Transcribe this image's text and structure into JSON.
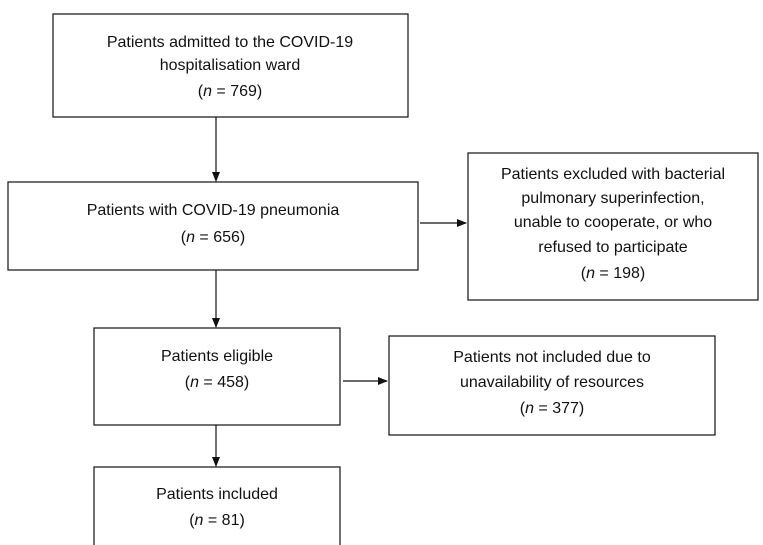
{
  "nodes": [
    {
      "lines": [
        "Patients admitted to the COVID-19",
        "hospitalisation ward"
      ],
      "count": [
        "(",
        "n",
        " =  769)"
      ]
    },
    {
      "lines": [
        "Patients with COVID-19 pneumonia"
      ],
      "count": [
        "(",
        "n",
        " =  656)"
      ]
    },
    {
      "lines": [
        "Patients excluded with bacterial",
        "pulmonary superinfection,",
        "unable to cooperate, or who",
        "refused to participate"
      ],
      "count": [
        "(",
        "n",
        " =  198)"
      ]
    },
    {
      "lines": [
        "Patients eligible"
      ],
      "count": [
        "(",
        "n",
        " = 458)"
      ]
    },
    {
      "lines": [
        "Patients not included due to",
        "unavailability of resources"
      ],
      "count": [
        "(",
        "n",
        " =  377)"
      ]
    },
    {
      "lines": [
        "Patients included"
      ],
      "count": [
        "(",
        "n",
        " = 81)"
      ]
    }
  ]
}
